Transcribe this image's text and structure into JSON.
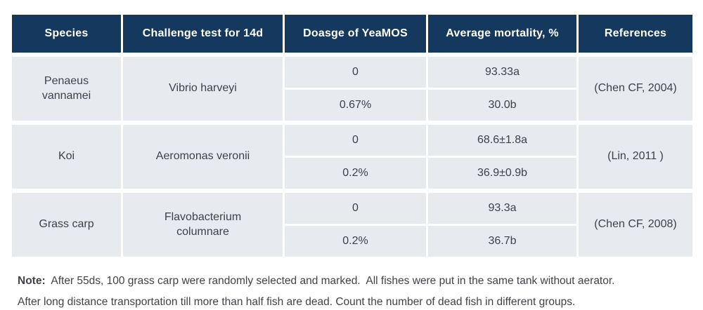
{
  "table": {
    "headers": {
      "species": "Species",
      "challenge": "Challenge test for 14d",
      "dosage": "Doasge of YeaMOS",
      "mortality": "Average mortality, %",
      "references": "References"
    },
    "rows": [
      {
        "species": "Penaeus vannamei",
        "challenge": "Vibrio harveyi",
        "entries": [
          {
            "dosage": "0",
            "mortality": "93.33a"
          },
          {
            "dosage": "0.67%",
            "mortality": "30.0b"
          }
        ],
        "reference": "(Chen CF, 2004)"
      },
      {
        "species": "Koi",
        "challenge": "Aeromonas veronii",
        "entries": [
          {
            "dosage": "0",
            "mortality": "68.6±1.8a"
          },
          {
            "dosage": "0.2%",
            "mortality": "36.9±0.9b"
          }
        ],
        "reference": "(Lin, 2011 )"
      },
      {
        "species": "Grass carp",
        "challenge": "Flavobacterium columnare",
        "entries": [
          {
            "dosage": "0",
            "mortality": "93.3a"
          },
          {
            "dosage": "0.2%",
            "mortality": "36.7b"
          }
        ],
        "reference": "(Chen CF, 2008)"
      }
    ]
  },
  "note": {
    "label": "Note:",
    "line1": "  After 55ds, 100 grass carp were randomly selected and marked.  All fishes were put in the same tank without aerator.",
    "line2": "After long distance transportation till more than half fish are dead. Count the number of dead fish in different groups."
  },
  "colors": {
    "header_bg": "#15395E",
    "header_text": "#FFFFFF",
    "cell_bg": "#E7EBEF",
    "body_text": "#3E4248",
    "grid_line": "#FFFFFF"
  },
  "chart_data": {
    "type": "table",
    "columns": [
      "Species",
      "Challenge test for 14d",
      "Doasge of YeaMOS",
      "Average mortality, %",
      "References"
    ],
    "rows": [
      [
        "Penaeus vannamei",
        "Vibrio harveyi",
        "0",
        "93.33a",
        "(Chen CF, 2004)"
      ],
      [
        "Penaeus vannamei",
        "Vibrio harveyi",
        "0.67%",
        "30.0b",
        "(Chen CF, 2004)"
      ],
      [
        "Koi",
        "Aeromonas veronii",
        "0",
        "68.6±1.8a",
        "(Lin, 2011 )"
      ],
      [
        "Koi",
        "Aeromonas veronii",
        "0.2%",
        "36.9±0.9b",
        "(Lin, 2011 )"
      ],
      [
        "Grass carp",
        "Flavobacterium columnare",
        "0",
        "93.3a",
        "(Chen CF, 2008)"
      ],
      [
        "Grass carp",
        "Flavobacterium columnare",
        "0.2%",
        "36.7b",
        "(Chen CF, 2008)"
      ]
    ],
    "note": "Note:  After 55ds, 100 grass carp were randomly selected and marked.  All fishes were put in the same tank without aerator. After long distance transportation till more than half fish are dead. Count the number of dead fish in different groups."
  }
}
